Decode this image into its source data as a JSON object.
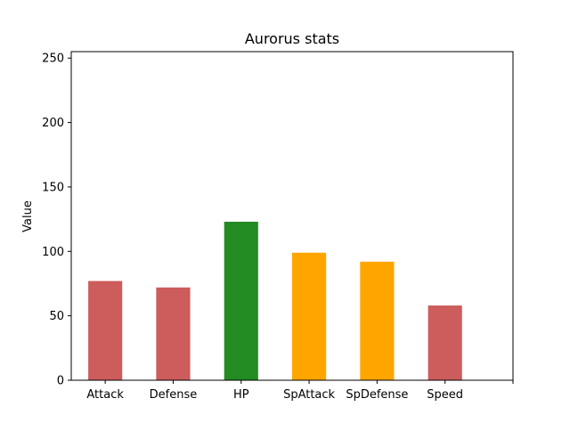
{
  "chart_data": {
    "type": "bar",
    "title": "Aurorus stats",
    "xlabel": "",
    "ylabel": "Value",
    "categories": [
      "Attack",
      "Defense",
      "HP",
      "SpAttack",
      "SpDefense",
      "Speed"
    ],
    "values": [
      77,
      72,
      123,
      99,
      92,
      58
    ],
    "bar_colors": [
      "#cd5c5c",
      "#cd5c5c",
      "#228b22",
      "#ffa500",
      "#ffa500",
      "#cd5c5c"
    ],
    "ylim": [
      0,
      255
    ],
    "yticks": [
      0,
      50,
      100,
      150,
      200,
      250
    ],
    "grid": false,
    "legend": "none"
  }
}
